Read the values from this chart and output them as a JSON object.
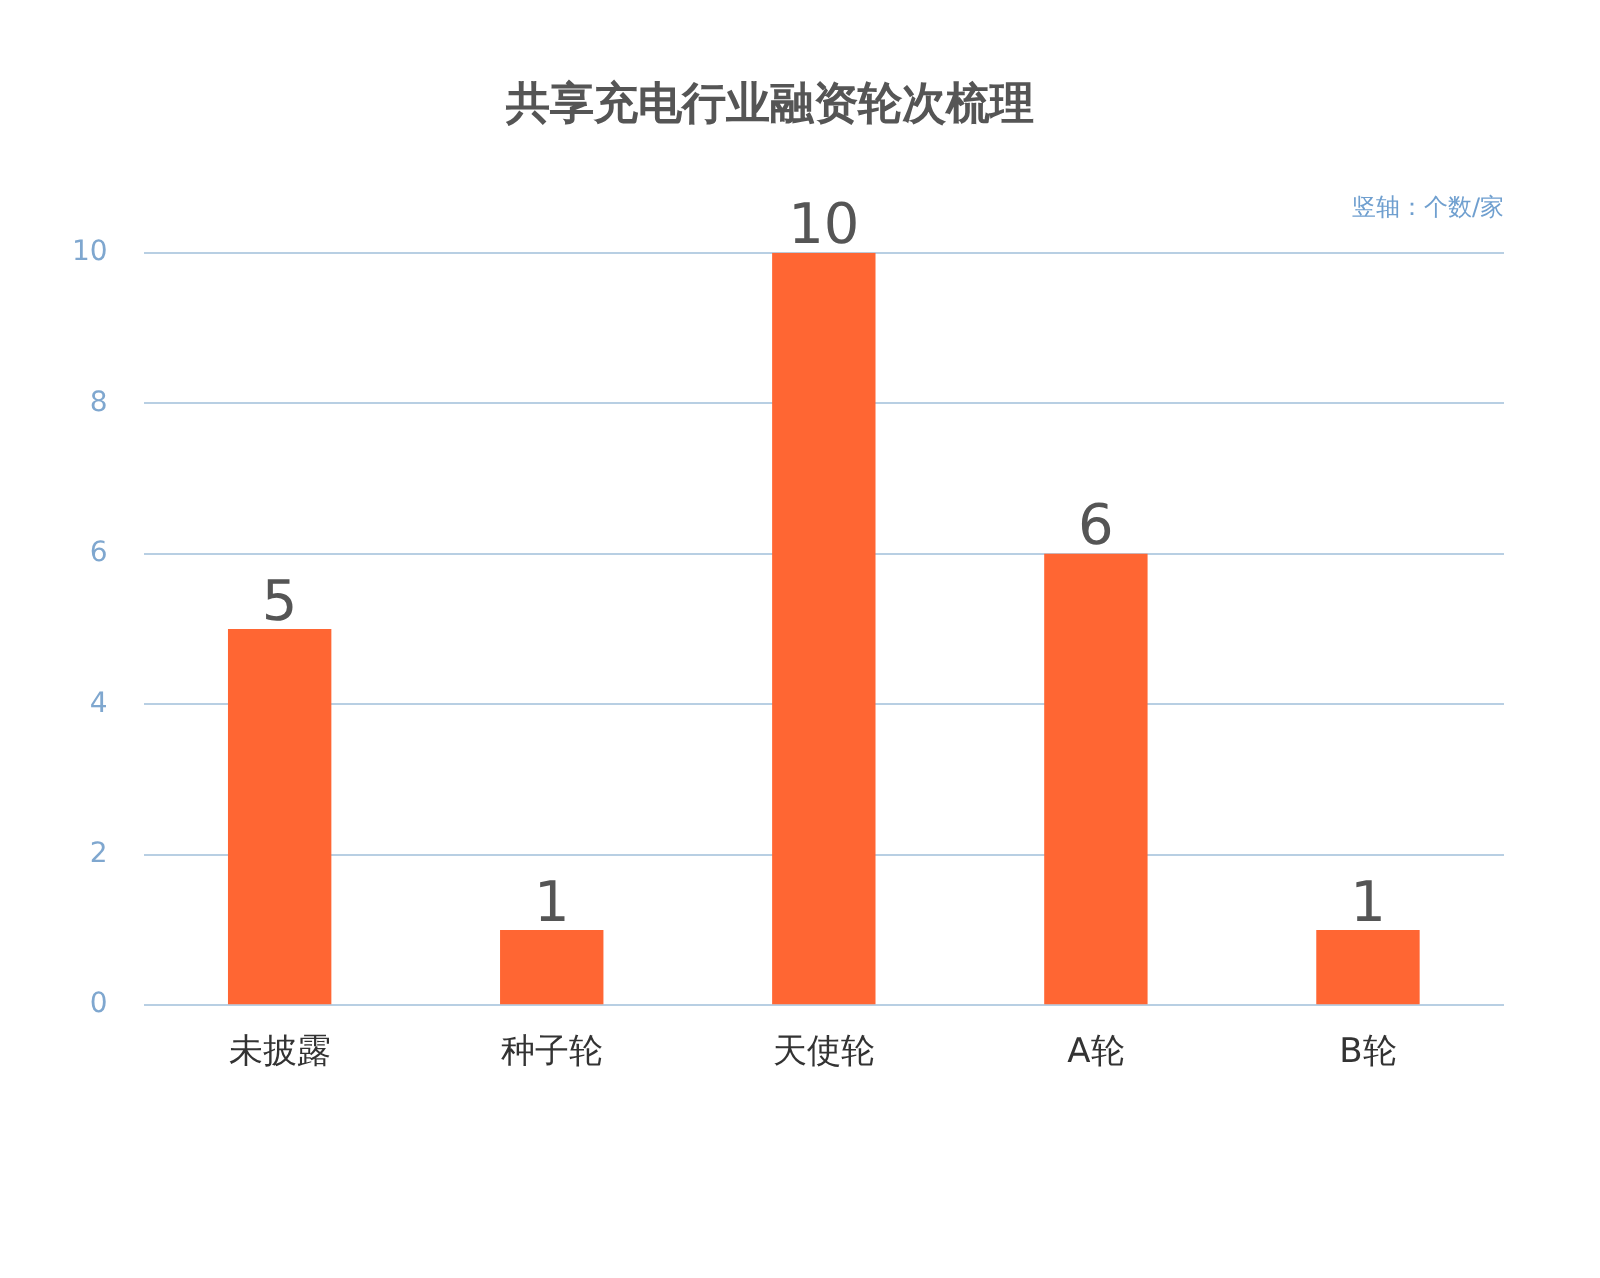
{
  "chart_data": {
    "type": "bar",
    "title": "共享充电行业融资轮次梳理",
    "ylabel": "竖轴：个数/家",
    "categories": [
      "未披露",
      "种子轮",
      "天使轮",
      "A轮",
      "B轮"
    ],
    "values": [
      5,
      1,
      10,
      6,
      1
    ],
    "color": "#ff6633",
    "ylim": [
      0,
      10
    ],
    "yticks": [
      0,
      2,
      4,
      6,
      8,
      10
    ],
    "grid": "y",
    "data_labels": true
  }
}
